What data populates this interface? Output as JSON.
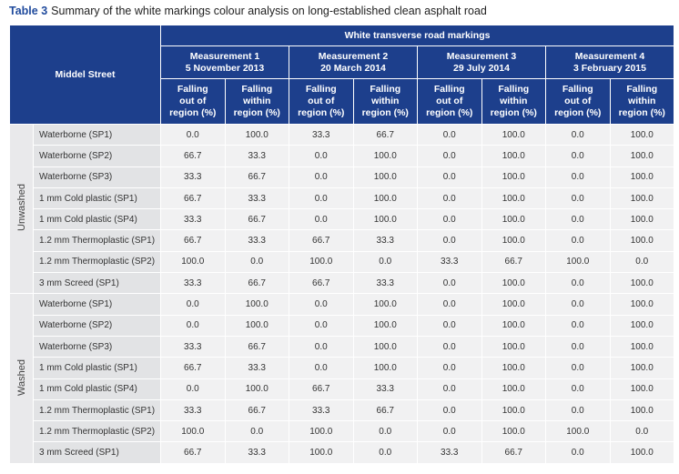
{
  "caption": {
    "label": "Table 3",
    "text": "Summary of the white markings colour analysis on long-established clean asphalt road"
  },
  "table": {
    "corner": "Middel Street",
    "group_header": "White transverse road markings",
    "measurements": [
      {
        "name": "Measurement 1",
        "date": "5 November 2013"
      },
      {
        "name": "Measurement 2",
        "date": "20 March 2014"
      },
      {
        "name": "Measurement 3",
        "date": "29 July 2014"
      },
      {
        "name": "Measurement 4",
        "date": "3 February 2015"
      }
    ],
    "sub_headers": [
      [
        "Falling",
        "out of",
        "region (%)"
      ],
      [
        "Falling",
        "within",
        "region (%)"
      ]
    ],
    "groups": [
      {
        "name": "Unwashed",
        "rows": [
          {
            "label": "Waterborne (SP1)",
            "values": [
              "0.0",
              "100.0",
              "33.3",
              "66.7",
              "0.0",
              "100.0",
              "0.0",
              "100.0"
            ]
          },
          {
            "label": "Waterborne (SP2)",
            "values": [
              "66.7",
              "33.3",
              "0.0",
              "100.0",
              "0.0",
              "100.0",
              "0.0",
              "100.0"
            ]
          },
          {
            "label": "Waterborne (SP3)",
            "values": [
              "33.3",
              "66.7",
              "0.0",
              "100.0",
              "0.0",
              "100.0",
              "0.0",
              "100.0"
            ]
          },
          {
            "label": "1 mm Cold plastic (SP1)",
            "values": [
              "66.7",
              "33.3",
              "0.0",
              "100.0",
              "0.0",
              "100.0",
              "0.0",
              "100.0"
            ]
          },
          {
            "label": "1 mm Cold plastic (SP4)",
            "values": [
              "33.3",
              "66.7",
              "0.0",
              "100.0",
              "0.0",
              "100.0",
              "0.0",
              "100.0"
            ]
          },
          {
            "label": "1.2 mm Thermoplastic (SP1)",
            "values": [
              "66.7",
              "33.3",
              "66.7",
              "33.3",
              "0.0",
              "100.0",
              "0.0",
              "100.0"
            ]
          },
          {
            "label": "1.2 mm Thermoplastic (SP2)",
            "values": [
              "100.0",
              "0.0",
              "100.0",
              "0.0",
              "33.3",
              "66.7",
              "100.0",
              "0.0"
            ]
          },
          {
            "label": "3 mm Screed (SP1)",
            "values": [
              "33.3",
              "66.7",
              "66.7",
              "33.3",
              "0.0",
              "100.0",
              "0.0",
              "100.0"
            ]
          }
        ]
      },
      {
        "name": "Washed",
        "rows": [
          {
            "label": "Waterborne (SP1)",
            "values": [
              "0.0",
              "100.0",
              "0.0",
              "100.0",
              "0.0",
              "100.0",
              "0.0",
              "100.0"
            ]
          },
          {
            "label": "Waterborne (SP2)",
            "values": [
              "0.0",
              "100.0",
              "0.0",
              "100.0",
              "0.0",
              "100.0",
              "0.0",
              "100.0"
            ]
          },
          {
            "label": "Waterborne (SP3)",
            "values": [
              "33.3",
              "66.7",
              "0.0",
              "100.0",
              "0.0",
              "100.0",
              "0.0",
              "100.0"
            ]
          },
          {
            "label": "1 mm Cold plastic (SP1)",
            "values": [
              "66.7",
              "33.3",
              "0.0",
              "100.0",
              "0.0",
              "100.0",
              "0.0",
              "100.0"
            ]
          },
          {
            "label": "1 mm Cold plastic (SP4)",
            "values": [
              "0.0",
              "100.0",
              "66.7",
              "33.3",
              "0.0",
              "100.0",
              "0.0",
              "100.0"
            ]
          },
          {
            "label": "1.2 mm Thermoplastic (SP1)",
            "values": [
              "33.3",
              "66.7",
              "33.3",
              "66.7",
              "0.0",
              "100.0",
              "0.0",
              "100.0"
            ]
          },
          {
            "label": "1.2 mm Thermoplastic (SP2)",
            "values": [
              "100.0",
              "0.0",
              "100.0",
              "0.0",
              "0.0",
              "100.0",
              "100.0",
              "0.0"
            ]
          },
          {
            "label": "3 mm Screed (SP1)",
            "values": [
              "66.7",
              "33.3",
              "100.0",
              "0.0",
              "33.3",
              "66.7",
              "0.0",
              "100.0"
            ]
          }
        ]
      }
    ]
  }
}
